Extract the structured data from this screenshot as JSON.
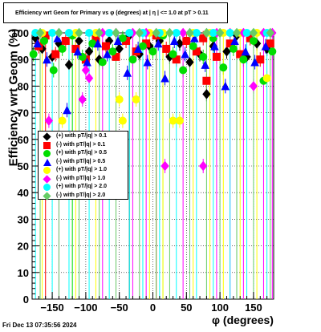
{
  "header": {
    "title": "Efficiency wrt Geom for Primary vs φ (degrees) at | η | <= 1.0 at pT > 0.11",
    "timestamp": "Fri Dec 13 07:35:56 2024"
  },
  "chart_data": {
    "type": "scatter",
    "title": "Efficiency wrt Geom for Primary vs φ (degrees) at | η | <= 1.0 at pT > 0.11",
    "xlabel": "φ (degrees)",
    "ylabel": "Efficiency wrt Geom (%)",
    "xlim": [
      -180,
      180
    ],
    "ylim": [
      0,
      100
    ],
    "x_ticks": [
      -150,
      -100,
      -50,
      0,
      50,
      100,
      150
    ],
    "x_tick_labels": [
      "−150",
      "−100",
      "−50",
      "0",
      "50",
      "100",
      "150"
    ],
    "y_ticks": [
      0,
      10,
      20,
      30,
      40,
      50,
      60,
      70,
      80,
      90,
      100
    ],
    "y_tick_labels": [
      "0",
      "10",
      "20",
      "30",
      "40",
      "50",
      "60",
      "70",
      "80",
      "90",
      "100"
    ],
    "grid": true,
    "legend_position": "left-middle",
    "series": [
      {
        "name": "(+) with pT/|q| > 0.1",
        "color": "#000000",
        "marker": "diamond",
        "points": [
          [
            -175,
            98
          ],
          [
            -165,
            94
          ],
          [
            -150,
            91
          ],
          [
            -140,
            96
          ],
          [
            -125,
            88
          ],
          [
            -110,
            97
          ],
          [
            -95,
            93
          ],
          [
            -80,
            90
          ],
          [
            -65,
            97
          ],
          [
            -50,
            94
          ],
          [
            -35,
            99
          ],
          [
            -20,
            92
          ],
          [
            -5,
            95
          ],
          [
            10,
            97
          ],
          [
            25,
            91
          ],
          [
            40,
            96
          ],
          [
            55,
            89
          ],
          [
            70,
            92
          ],
          [
            80,
            77
          ],
          [
            90,
            95
          ],
          [
            110,
            93
          ],
          [
            125,
            99
          ],
          [
            140,
            91
          ],
          [
            155,
            96
          ],
          [
            170,
            94
          ]
        ]
      },
      {
        "name": "(-) with pT/|q| > 0.1",
        "color": "#ff0000",
        "marker": "square",
        "points": [
          [
            -170,
            95
          ],
          [
            -160,
            99
          ],
          [
            -145,
            92
          ],
          [
            -130,
            97
          ],
          [
            -115,
            94
          ],
          [
            -100,
            90
          ],
          [
            -85,
            98
          ],
          [
            -70,
            95
          ],
          [
            -55,
            91
          ],
          [
            -40,
            97
          ],
          [
            -25,
            93
          ],
          [
            -10,
            96
          ],
          [
            5,
            99
          ],
          [
            20,
            94
          ],
          [
            35,
            90
          ],
          [
            50,
            97
          ],
          [
            65,
            93
          ],
          [
            75,
            98
          ],
          [
            80,
            82
          ],
          [
            95,
            91
          ],
          [
            115,
            96
          ],
          [
            130,
            92
          ],
          [
            145,
            98
          ],
          [
            160,
            90
          ],
          [
            175,
            96
          ]
        ]
      },
      {
        "name": "(+) with pT/|q| > 0.5",
        "color": "#00dd00",
        "marker": "circle",
        "points": [
          [
            -178,
            92
          ],
          [
            -162,
            97
          ],
          [
            -148,
            86
          ],
          [
            -135,
            94
          ],
          [
            -120,
            99
          ],
          [
            -105,
            91
          ],
          [
            -90,
            96
          ],
          [
            -75,
            89
          ],
          [
            -60,
            93
          ],
          [
            -45,
            98
          ],
          [
            -30,
            90
          ],
          [
            -15,
            95
          ],
          [
            0,
            93
          ],
          [
            15,
            99
          ],
          [
            30,
            92
          ],
          [
            45,
            86
          ],
          [
            60,
            95
          ],
          [
            75,
            91
          ],
          [
            90,
            98
          ],
          [
            105,
            87
          ],
          [
            120,
            94
          ],
          [
            135,
            90
          ],
          [
            150,
            97
          ],
          [
            165,
            82
          ],
          [
            178,
            93
          ]
        ]
      },
      {
        "name": "(-) with pT/|q| > 0.5",
        "color": "#0000ff",
        "marker": "triangle",
        "points": [
          [
            -172,
            96
          ],
          [
            -158,
            90
          ],
          [
            -142,
            98
          ],
          [
            -128,
            71
          ],
          [
            -112,
            93
          ],
          [
            -98,
            89
          ],
          [
            -82,
            96
          ],
          [
            -68,
            92
          ],
          [
            -52,
            97
          ],
          [
            -38,
            85
          ],
          [
            -22,
            94
          ],
          [
            -8,
            89
          ],
          [
            8,
            96
          ],
          [
            18,
            83
          ],
          [
            32,
            97
          ],
          [
            48,
            92
          ],
          [
            62,
            98
          ],
          [
            78,
            88
          ],
          [
            92,
            95
          ],
          [
            108,
            80
          ],
          [
            122,
            97
          ],
          [
            138,
            93
          ],
          [
            152,
            89
          ],
          [
            168,
            95
          ]
        ]
      },
      {
        "name": "(+) with pT/|q| > 1.0",
        "color": "#ffff00",
        "marker": "circle",
        "points": [
          [
            -165,
            100
          ],
          [
            -135,
            67
          ],
          [
            -115,
            100
          ],
          [
            -85,
            100
          ],
          [
            -50,
            75
          ],
          [
            -45,
            67
          ],
          [
            -25,
            75
          ],
          [
            -5,
            100
          ],
          [
            15,
            100
          ],
          [
            30,
            67
          ],
          [
            40,
            67
          ],
          [
            60,
            100
          ],
          [
            85,
            100
          ],
          [
            105,
            100
          ],
          [
            130,
            100
          ],
          [
            155,
            100
          ],
          [
            170,
            83
          ]
        ]
      },
      {
        "name": "(-) with pT/|q| > 1.0",
        "color": "#ff00ff",
        "marker": "diamond",
        "points": [
          [
            -155,
            67
          ],
          [
            -140,
            100
          ],
          [
            -105,
            75
          ],
          [
            -95,
            83
          ],
          [
            -100,
            86
          ],
          [
            -75,
            100
          ],
          [
            -55,
            100
          ],
          [
            -30,
            100
          ],
          [
            -10,
            100
          ],
          [
            18,
            50
          ],
          [
            45,
            100
          ],
          [
            75,
            50
          ],
          [
            95,
            100
          ],
          [
            115,
            100
          ],
          [
            135,
            100
          ],
          [
            150,
            80
          ],
          [
            165,
            100
          ],
          [
            178,
            100
          ]
        ]
      },
      {
        "name": "(+) with pT/|q| > 2.0",
        "color": "#00ffff",
        "marker": "circle",
        "points": [
          [
            -175,
            100
          ],
          [
            -150,
            100
          ],
          [
            -125,
            100
          ],
          [
            -95,
            100
          ],
          [
            -65,
            100
          ],
          [
            -35,
            100
          ],
          [
            -15,
            100
          ],
          [
            10,
            100
          ],
          [
            35,
            100
          ],
          [
            65,
            100
          ],
          [
            90,
            100
          ],
          [
            115,
            100
          ],
          [
            140,
            100
          ],
          [
            170,
            100
          ]
        ]
      },
      {
        "name": "(-) with pT/|q| > 2.0",
        "color": "#66cc66",
        "marker": "diamond",
        "points": [
          [
            -168,
            100
          ],
          [
            -140,
            100
          ],
          [
            -110,
            100
          ],
          [
            -80,
            100
          ],
          [
            -55,
            100
          ],
          [
            -20,
            100
          ],
          [
            5,
            100
          ],
          [
            25,
            100
          ],
          [
            55,
            100
          ],
          [
            80,
            100
          ],
          [
            100,
            100
          ],
          [
            125,
            100
          ],
          [
            150,
            100
          ],
          [
            175,
            100
          ]
        ]
      }
    ]
  }
}
